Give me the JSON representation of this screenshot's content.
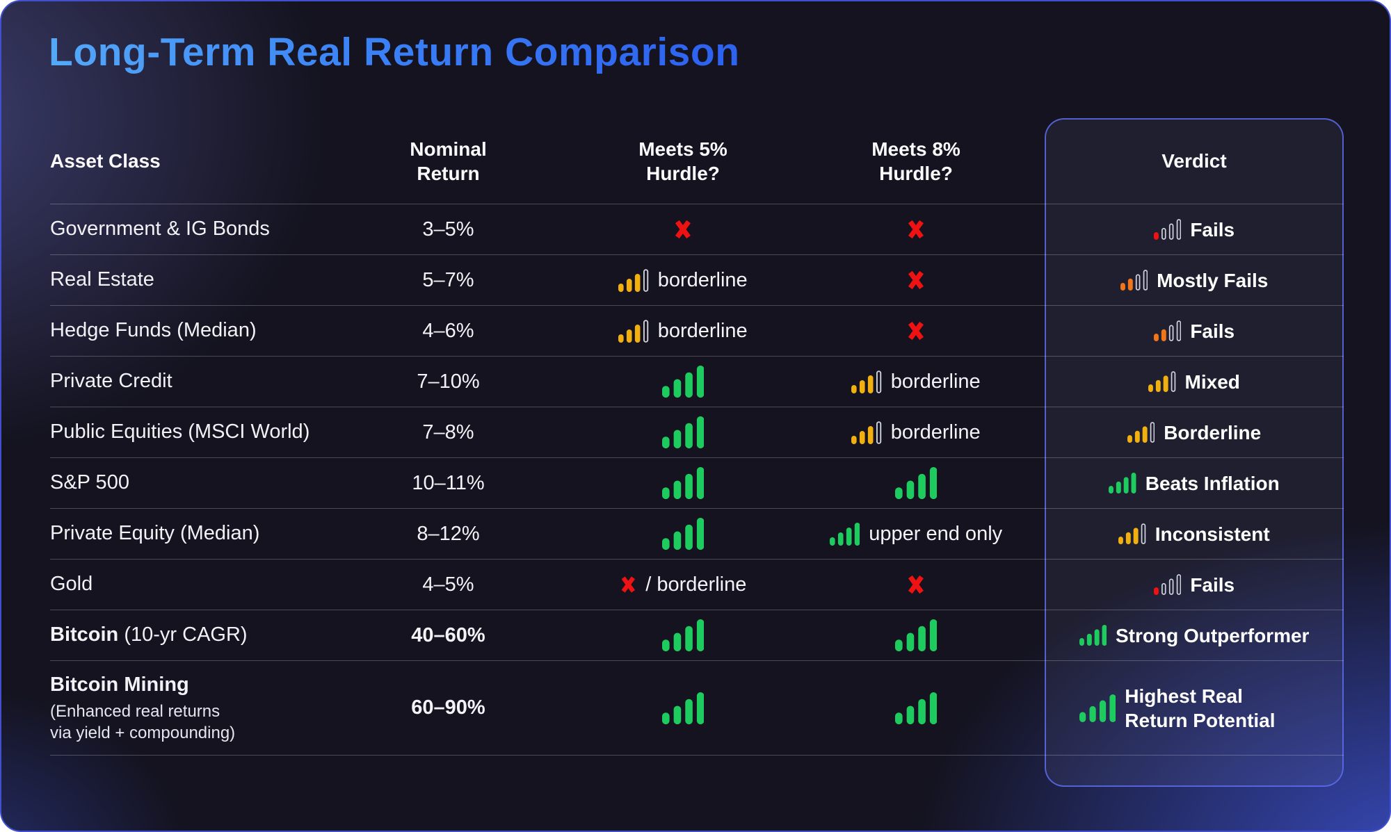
{
  "title": "Long-Term Real Return Comparison",
  "columns": [
    "Asset Class",
    "Nominal Return",
    "Meets 5% Hurdle?",
    "Meets 8% Hurdle?",
    "Verdict"
  ],
  "colors": {
    "green": "#1ecb5f",
    "yellow": "#f1af10",
    "orange": "#f1761b",
    "red": "#ef1212",
    "bar_outline": "#cfd3dd",
    "title_gradient_start": "#54a9f8",
    "title_gradient_end": "#2e63f0",
    "panel_border": "#5d6ceb"
  },
  "rows": [
    {
      "asset": {
        "normal": "Government & IG Bonds"
      },
      "nominal": {
        "text": "3–5%",
        "bold": false
      },
      "hurdle5": {
        "icon": "cross"
      },
      "hurdle8": {
        "icon": "cross"
      },
      "verdict": {
        "icon": "bars",
        "color": "red",
        "filled": 1,
        "label": "Fails"
      }
    },
    {
      "asset": {
        "normal": "Real Estate"
      },
      "nominal": {
        "text": "5–7%",
        "bold": false
      },
      "hurdle5": {
        "icon": "bars",
        "color": "yellow",
        "filled": 3,
        "label": "borderline"
      },
      "hurdle8": {
        "icon": "cross"
      },
      "verdict": {
        "icon": "bars",
        "color": "orange",
        "filled": 2,
        "label": "Mostly Fails"
      }
    },
    {
      "asset": {
        "normal": "Hedge Funds (Median)"
      },
      "nominal": {
        "text": "4–6%",
        "bold": false
      },
      "hurdle5": {
        "icon": "bars",
        "color": "yellow",
        "filled": 3,
        "label": "borderline"
      },
      "hurdle8": {
        "icon": "cross"
      },
      "verdict": {
        "icon": "bars",
        "color": "orange",
        "filled": 2,
        "label": "Fails"
      }
    },
    {
      "asset": {
        "normal": "Private Credit"
      },
      "nominal": {
        "text": "7–10%",
        "bold": false
      },
      "hurdle5": {
        "icon": "bars",
        "color": "green",
        "filled": 4
      },
      "hurdle8": {
        "icon": "bars",
        "color": "yellow",
        "filled": 3,
        "label": "borderline"
      },
      "verdict": {
        "icon": "bars",
        "color": "yellow",
        "filled": 3,
        "label": "Mixed"
      }
    },
    {
      "asset": {
        "normal": "Public Equities (MSCI World)"
      },
      "nominal": {
        "text": "7–8%",
        "bold": false
      },
      "hurdle5": {
        "icon": "bars",
        "color": "green",
        "filled": 4
      },
      "hurdle8": {
        "icon": "bars",
        "color": "yellow",
        "filled": 3,
        "label": "borderline"
      },
      "verdict": {
        "icon": "bars",
        "color": "yellow",
        "filled": 3,
        "label": "Borderline"
      }
    },
    {
      "asset": {
        "normal": "S&P 500"
      },
      "nominal": {
        "text": "10–11%",
        "bold": false
      },
      "hurdle5": {
        "icon": "bars",
        "color": "green",
        "filled": 4
      },
      "hurdle8": {
        "icon": "bars",
        "color": "green",
        "filled": 4
      },
      "verdict": {
        "icon": "bars",
        "color": "green",
        "filled": 4,
        "label": "Beats Inflation"
      }
    },
    {
      "asset": {
        "normal": "Private Equity (Median)"
      },
      "nominal": {
        "text": "8–12%",
        "bold": false
      },
      "hurdle5": {
        "icon": "bars",
        "color": "green",
        "filled": 4
      },
      "hurdle8": {
        "icon": "bars",
        "color": "green",
        "filled": 4,
        "label": "upper end only"
      },
      "verdict": {
        "icon": "bars",
        "color": "yellow",
        "filled": 3,
        "label": "Inconsistent"
      }
    },
    {
      "asset": {
        "normal": "Gold"
      },
      "nominal": {
        "text": "4–5%",
        "bold": false
      },
      "hurdle5": {
        "icon": "cross",
        "label": "/ borderline"
      },
      "hurdle8": {
        "icon": "cross"
      },
      "verdict": {
        "icon": "bars",
        "color": "red",
        "filled": 1,
        "label": "Fails"
      }
    },
    {
      "asset": {
        "bold": "Bitcoin",
        "normal": " (10-yr CAGR)"
      },
      "nominal": {
        "text": "40–60%",
        "bold": true
      },
      "hurdle5": {
        "icon": "bars",
        "color": "green",
        "filled": 4
      },
      "hurdle8": {
        "icon": "bars",
        "color": "green",
        "filled": 4
      },
      "verdict": {
        "icon": "bars",
        "color": "green",
        "filled": 4,
        "label": "Strong Outperformer"
      }
    },
    {
      "asset": {
        "bold": "Bitcoin Mining",
        "sub": "(Enhanced real returns\nvia yield + compounding)"
      },
      "nominal": {
        "text": "60–90%",
        "bold": true
      },
      "hurdle5": {
        "icon": "bars",
        "color": "green",
        "filled": 4
      },
      "hurdle8": {
        "icon": "bars",
        "color": "green",
        "filled": 4
      },
      "verdict": {
        "icon": "bars",
        "color": "green",
        "filled": 4,
        "label": "Highest Real Return Potential",
        "wrap": true
      },
      "tall": true
    }
  ]
}
